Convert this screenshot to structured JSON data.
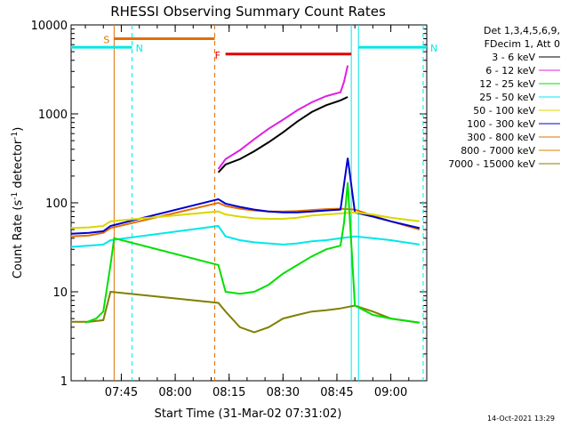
{
  "chart_data": {
    "type": "line",
    "title": "RHESSI Observing Summary Count Rates",
    "xlabel": "Start Time (31-Mar-02 07:31:02)",
    "ylabel_main": "Count Rate (s",
    "ylabel_sup": "-1",
    "ylabel_tail": " detector",
    "ylabel_close": ")",
    "yscale": "log",
    "ylim": [
      1,
      10000
    ],
    "xlim": [
      "07:31:02",
      "09:10"
    ],
    "y_ticks": [
      "1",
      "10",
      "100",
      "1000",
      "10000"
    ],
    "x_ticks": [
      "07:45",
      "08:00",
      "08:15",
      "08:30",
      "08:45",
      "09:00"
    ],
    "legend_header": [
      "Det 1,3,4,5,6,9,",
      "FDecim 1, Att 0"
    ],
    "legend_position": "right",
    "series": [
      {
        "name": "3 - 6 keV",
        "color": "#000000",
        "points": [
          [
            "08:12",
            220
          ],
          [
            "08:14",
            270
          ],
          [
            "08:18",
            310
          ],
          [
            "08:22",
            380
          ],
          [
            "08:26",
            480
          ],
          [
            "08:30",
            620
          ],
          [
            "08:34",
            820
          ],
          [
            "08:38",
            1050
          ],
          [
            "08:42",
            1250
          ],
          [
            "08:46",
            1420
          ],
          [
            "08:48",
            1550
          ]
        ]
      },
      {
        "name": "6 - 12 keV",
        "color": "#e020e0",
        "points": [
          [
            "08:12",
            240
          ],
          [
            "08:14",
            310
          ],
          [
            "08:18",
            390
          ],
          [
            "08:22",
            520
          ],
          [
            "08:26",
            680
          ],
          [
            "08:30",
            860
          ],
          [
            "08:34",
            1100
          ],
          [
            "08:38",
            1350
          ],
          [
            "08:42",
            1580
          ],
          [
            "08:46",
            1750
          ],
          [
            "08:47",
            2300
          ],
          [
            "08:48",
            3500
          ]
        ]
      },
      {
        "name": "12 - 25 keV",
        "color": "#00e000",
        "points": [
          [
            "07:35",
            4.5
          ],
          [
            "07:38",
            5
          ],
          [
            "07:40",
            6
          ],
          [
            "07:42",
            20
          ],
          [
            "07:43",
            40
          ],
          [
            "08:12",
            20
          ],
          [
            "08:14",
            10
          ],
          [
            "08:18",
            9.5
          ],
          [
            "08:22",
            10
          ],
          [
            "08:26",
            12
          ],
          [
            "08:30",
            16
          ],
          [
            "08:34",
            20
          ],
          [
            "08:38",
            25
          ],
          [
            "08:42",
            30
          ],
          [
            "08:46",
            33
          ],
          [
            "08:47",
            60
          ],
          [
            "08:48",
            170
          ],
          [
            "08:50",
            7
          ],
          [
            "08:55",
            5.5
          ],
          [
            "09:00",
            5
          ],
          [
            "09:08",
            4.5
          ]
        ]
      },
      {
        "name": "25 - 50 keV",
        "color": "#00e8e8",
        "points": [
          [
            "07:31",
            32
          ],
          [
            "07:36",
            33
          ],
          [
            "07:40",
            34
          ],
          [
            "07:42",
            38
          ],
          [
            "08:12",
            55
          ],
          [
            "08:14",
            42
          ],
          [
            "08:18",
            38
          ],
          [
            "08:22",
            36
          ],
          [
            "08:26",
            35
          ],
          [
            "08:30",
            34
          ],
          [
            "08:34",
            35
          ],
          [
            "08:38",
            37
          ],
          [
            "08:42",
            38
          ],
          [
            "08:46",
            40
          ],
          [
            "08:50",
            42
          ],
          [
            "08:55",
            40
          ],
          [
            "09:00",
            38
          ],
          [
            "09:08",
            34
          ]
        ]
      },
      {
        "name": "50 - 100 keV",
        "color": "#d8d800",
        "points": [
          [
            "07:31",
            52
          ],
          [
            "07:36",
            53
          ],
          [
            "07:40",
            55
          ],
          [
            "07:42",
            62
          ],
          [
            "08:12",
            80
          ],
          [
            "08:14",
            74
          ],
          [
            "08:18",
            70
          ],
          [
            "08:22",
            67
          ],
          [
            "08:26",
            66
          ],
          [
            "08:30",
            66
          ],
          [
            "08:34",
            68
          ],
          [
            "08:38",
            72
          ],
          [
            "08:42",
            74
          ],
          [
            "08:46",
            76
          ],
          [
            "08:50",
            78
          ],
          [
            "08:55",
            74
          ],
          [
            "09:00",
            68
          ],
          [
            "09:08",
            62
          ]
        ]
      },
      {
        "name": "100 - 300 keV",
        "color": "#0000d0",
        "points": [
          [
            "07:31",
            45
          ],
          [
            "07:36",
            46
          ],
          [
            "07:40",
            48
          ],
          [
            "07:42",
            55
          ],
          [
            "08:12",
            110
          ],
          [
            "08:14",
            98
          ],
          [
            "08:18",
            90
          ],
          [
            "08:22",
            84
          ],
          [
            "08:26",
            80
          ],
          [
            "08:30",
            78
          ],
          [
            "08:34",
            78
          ],
          [
            "08:38",
            80
          ],
          [
            "08:42",
            82
          ],
          [
            "08:46",
            84
          ],
          [
            "08:48",
            320
          ],
          [
            "08:50",
            78
          ],
          [
            "08:55",
            70
          ],
          [
            "09:00",
            62
          ],
          [
            "09:08",
            52
          ]
        ]
      },
      {
        "name": "300 - 800 keV",
        "color": "#e07000",
        "points": [
          [
            "07:31",
            42
          ],
          [
            "07:36",
            43
          ],
          [
            "07:40",
            46
          ],
          [
            "07:42",
            52
          ],
          [
            "08:12",
            100
          ],
          [
            "08:14",
            92
          ],
          [
            "08:18",
            86
          ],
          [
            "08:22",
            82
          ],
          [
            "08:26",
            80
          ],
          [
            "08:30",
            80
          ],
          [
            "08:34",
            81
          ],
          [
            "08:38",
            83
          ],
          [
            "08:42",
            85
          ],
          [
            "08:46",
            86
          ],
          [
            "08:50",
            84
          ],
          [
            "08:55",
            72
          ],
          [
            "09:00",
            62
          ],
          [
            "09:08",
            50
          ]
        ]
      },
      {
        "name": "7000 - 15000 keV",
        "color": "#808000",
        "points": [
          [
            "07:31",
            4.6
          ],
          [
            "07:36",
            4.6
          ],
          [
            "07:40",
            4.8
          ],
          [
            "07:42",
            10
          ],
          [
            "08:12",
            7.5
          ],
          [
            "08:14",
            6
          ],
          [
            "08:18",
            4
          ],
          [
            "08:22",
            3.5
          ],
          [
            "08:26",
            4
          ],
          [
            "08:30",
            5
          ],
          [
            "08:34",
            5.5
          ],
          [
            "08:38",
            6
          ],
          [
            "08:42",
            6.2
          ],
          [
            "08:46",
            6.5
          ],
          [
            "08:50",
            7
          ],
          [
            "08:55",
            6
          ],
          [
            "09:00",
            5
          ],
          [
            "09:08",
            4.5
          ]
        ]
      }
    ],
    "extra_legend_entry": {
      "name": "800 - 7000 keV",
      "color": "#e08000"
    },
    "flags": [
      {
        "label": "S",
        "color": "#e07000",
        "start": "07:43",
        "end": "08:11",
        "value": 7000
      },
      {
        "label": "N",
        "color": "#00e8e8",
        "start": "07:31",
        "end": "07:48",
        "value": 5600
      },
      {
        "label": "N",
        "color": "#00e8e8",
        "start": "08:51",
        "end": "09:10",
        "value": 5600
      },
      {
        "label": "F",
        "color": "#e00000",
        "start": "08:14",
        "end": "08:49",
        "value": 4700
      }
    ],
    "vertical_lines": [
      {
        "time": "07:43",
        "color": "#e07000",
        "style": "solid"
      },
      {
        "time": "07:48",
        "color": "#00e8e8",
        "style": "dashed"
      },
      {
        "time": "08:11",
        "color": "#e07000",
        "style": "dashed"
      },
      {
        "time": "08:49",
        "color": "#00e8e8",
        "style": "solid"
      },
      {
        "time": "08:51",
        "color": "#00e8e8",
        "style": "solid"
      },
      {
        "time": "09:09",
        "color": "#00e8e8",
        "style": "dashed"
      }
    ],
    "grid": false
  },
  "footer_date": "14-Oct-2021 13:29"
}
